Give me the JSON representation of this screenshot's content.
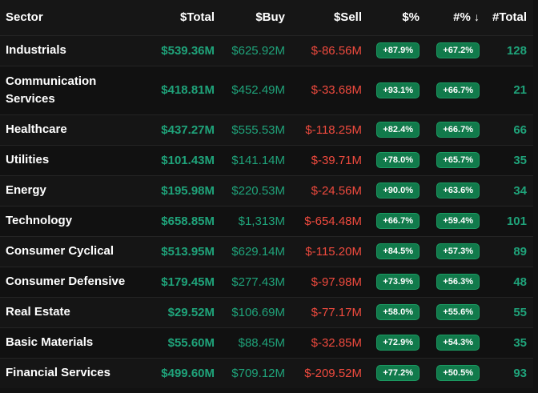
{
  "header": {
    "sector": "Sector",
    "total": "$Total",
    "buy": "$Buy",
    "sell": "$Sell",
    "pct": "$%",
    "count_pct": "#%",
    "sort_icon": "↓",
    "count": "#Total"
  },
  "rows": [
    {
      "sector": "Industrials",
      "total": "$539.36M",
      "buy": "$625.92M",
      "sell": "$-86.56M",
      "pct": "+87.9%",
      "count_pct": "+67.2%",
      "count": "128"
    },
    {
      "sector": "Communication Services",
      "total": "$418.81M",
      "buy": "$452.49M",
      "sell": "$-33.68M",
      "pct": "+93.1%",
      "count_pct": "+66.7%",
      "count": "21"
    },
    {
      "sector": "Healthcare",
      "total": "$437.27M",
      "buy": "$555.53M",
      "sell": "$-118.25M",
      "pct": "+82.4%",
      "count_pct": "+66.7%",
      "count": "66"
    },
    {
      "sector": "Utilities",
      "total": "$101.43M",
      "buy": "$141.14M",
      "sell": "$-39.71M",
      "pct": "+78.0%",
      "count_pct": "+65.7%",
      "count": "35"
    },
    {
      "sector": "Energy",
      "total": "$195.98M",
      "buy": "$220.53M",
      "sell": "$-24.56M",
      "pct": "+90.0%",
      "count_pct": "+63.6%",
      "count": "34"
    },
    {
      "sector": "Technology",
      "total": "$658.85M",
      "buy": "$1,313M",
      "sell": "$-654.48M",
      "pct": "+66.7%",
      "count_pct": "+59.4%",
      "count": "101"
    },
    {
      "sector": "Consumer Cyclical",
      "total": "$513.95M",
      "buy": "$629.14M",
      "sell": "$-115.20M",
      "pct": "+84.5%",
      "count_pct": "+57.3%",
      "count": "89"
    },
    {
      "sector": "Consumer Defensive",
      "total": "$179.45M",
      "buy": "$277.43M",
      "sell": "$-97.98M",
      "pct": "+73.9%",
      "count_pct": "+56.3%",
      "count": "48"
    },
    {
      "sector": "Real Estate",
      "total": "$29.52M",
      "buy": "$106.69M",
      "sell": "$-77.17M",
      "pct": "+58.0%",
      "count_pct": "+55.6%",
      "count": "55"
    },
    {
      "sector": "Basic Materials",
      "total": "$55.60M",
      "buy": "$88.45M",
      "sell": "$-32.85M",
      "pct": "+72.9%",
      "count_pct": "+54.3%",
      "count": "35"
    },
    {
      "sector": "Financial Services",
      "total": "$499.60M",
      "buy": "$709.12M",
      "sell": "$-209.52M",
      "pct": "+77.2%",
      "count_pct": "+50.5%",
      "count": "93"
    }
  ],
  "colors": {
    "positive": "#1fa37a",
    "negative": "#ef4a3e",
    "pill_bg": "#117a4b",
    "background": "#121212"
  }
}
